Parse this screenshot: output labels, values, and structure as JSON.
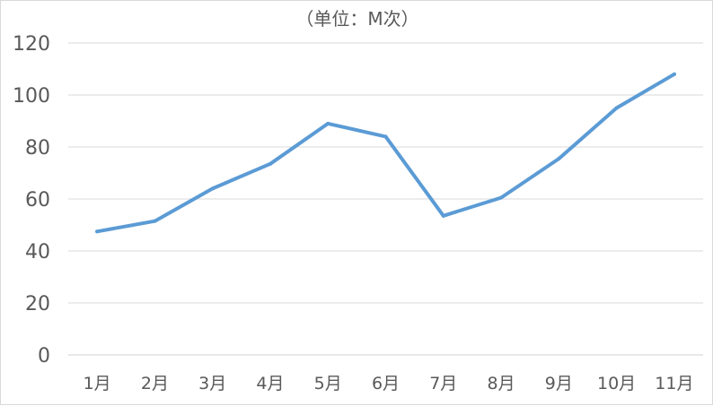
{
  "chart_data": {
    "type": "line",
    "title": "（单位：M次）",
    "categories": [
      "1月",
      "2月",
      "3月",
      "4月",
      "5月",
      "6月",
      "7月",
      "8月",
      "9月",
      "10月",
      "11月"
    ],
    "series": [
      {
        "values": [
          47.5,
          51.5,
          64,
          73.5,
          89,
          84,
          53.5,
          60.5,
          75.5,
          95,
          108
        ]
      }
    ],
    "ylim": [
      0,
      120
    ],
    "yticks": [
      0,
      20,
      40,
      60,
      80,
      100,
      120
    ],
    "grid": true,
    "colors": {
      "line": "#5b9bd5",
      "grid": "#d9d9d9",
      "text": "#595959"
    }
  }
}
